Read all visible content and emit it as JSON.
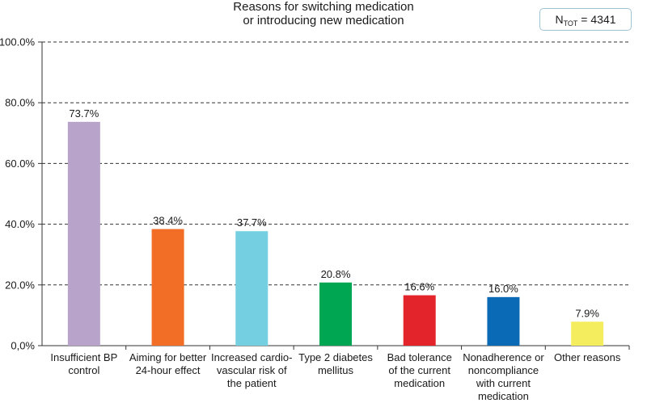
{
  "chart_data": {
    "type": "bar",
    "title_lines": [
      "Reasons for switching medication",
      "or introducing new medication"
    ],
    "annotation": {
      "prefix": "N",
      "subscript": "TOT",
      "text": " = 4341"
    },
    "categories": [
      [
        "Insufficient BP",
        "control"
      ],
      [
        "Aiming for better",
        "24-hour effect"
      ],
      [
        "Increased cardio-",
        "vascular risk of",
        "the patient"
      ],
      [
        "Type 2 diabetes",
        "mellitus"
      ],
      [
        "Bad tolerance",
        "of the current",
        "medication"
      ],
      [
        "Nonadherence or",
        "noncompliance",
        "with current",
        "medication"
      ],
      [
        "Other reasons"
      ]
    ],
    "values": [
      73.7,
      38.4,
      37.7,
      20.8,
      16.6,
      16.0,
      7.9
    ],
    "value_labels": [
      "73.7%",
      "38.4%",
      "37.7%",
      "20.8%",
      "16.6%",
      "16.0%",
      "7.9%"
    ],
    "colors": [
      "#b8a3cb",
      "#f26e26",
      "#74cfe0",
      "#00a651",
      "#e3242b",
      "#0b6ab5",
      "#f4ee5f"
    ],
    "ylim": [
      0,
      100
    ],
    "yticks": [
      0,
      20,
      40,
      60,
      80,
      100
    ],
    "ytick_labels": [
      "0,0%",
      "20.0%",
      "40.0%",
      "60.0%",
      "80.0%",
      "100.0%"
    ],
    "grid": "dashed-horizontal",
    "xlabel": "",
    "ylabel": ""
  }
}
